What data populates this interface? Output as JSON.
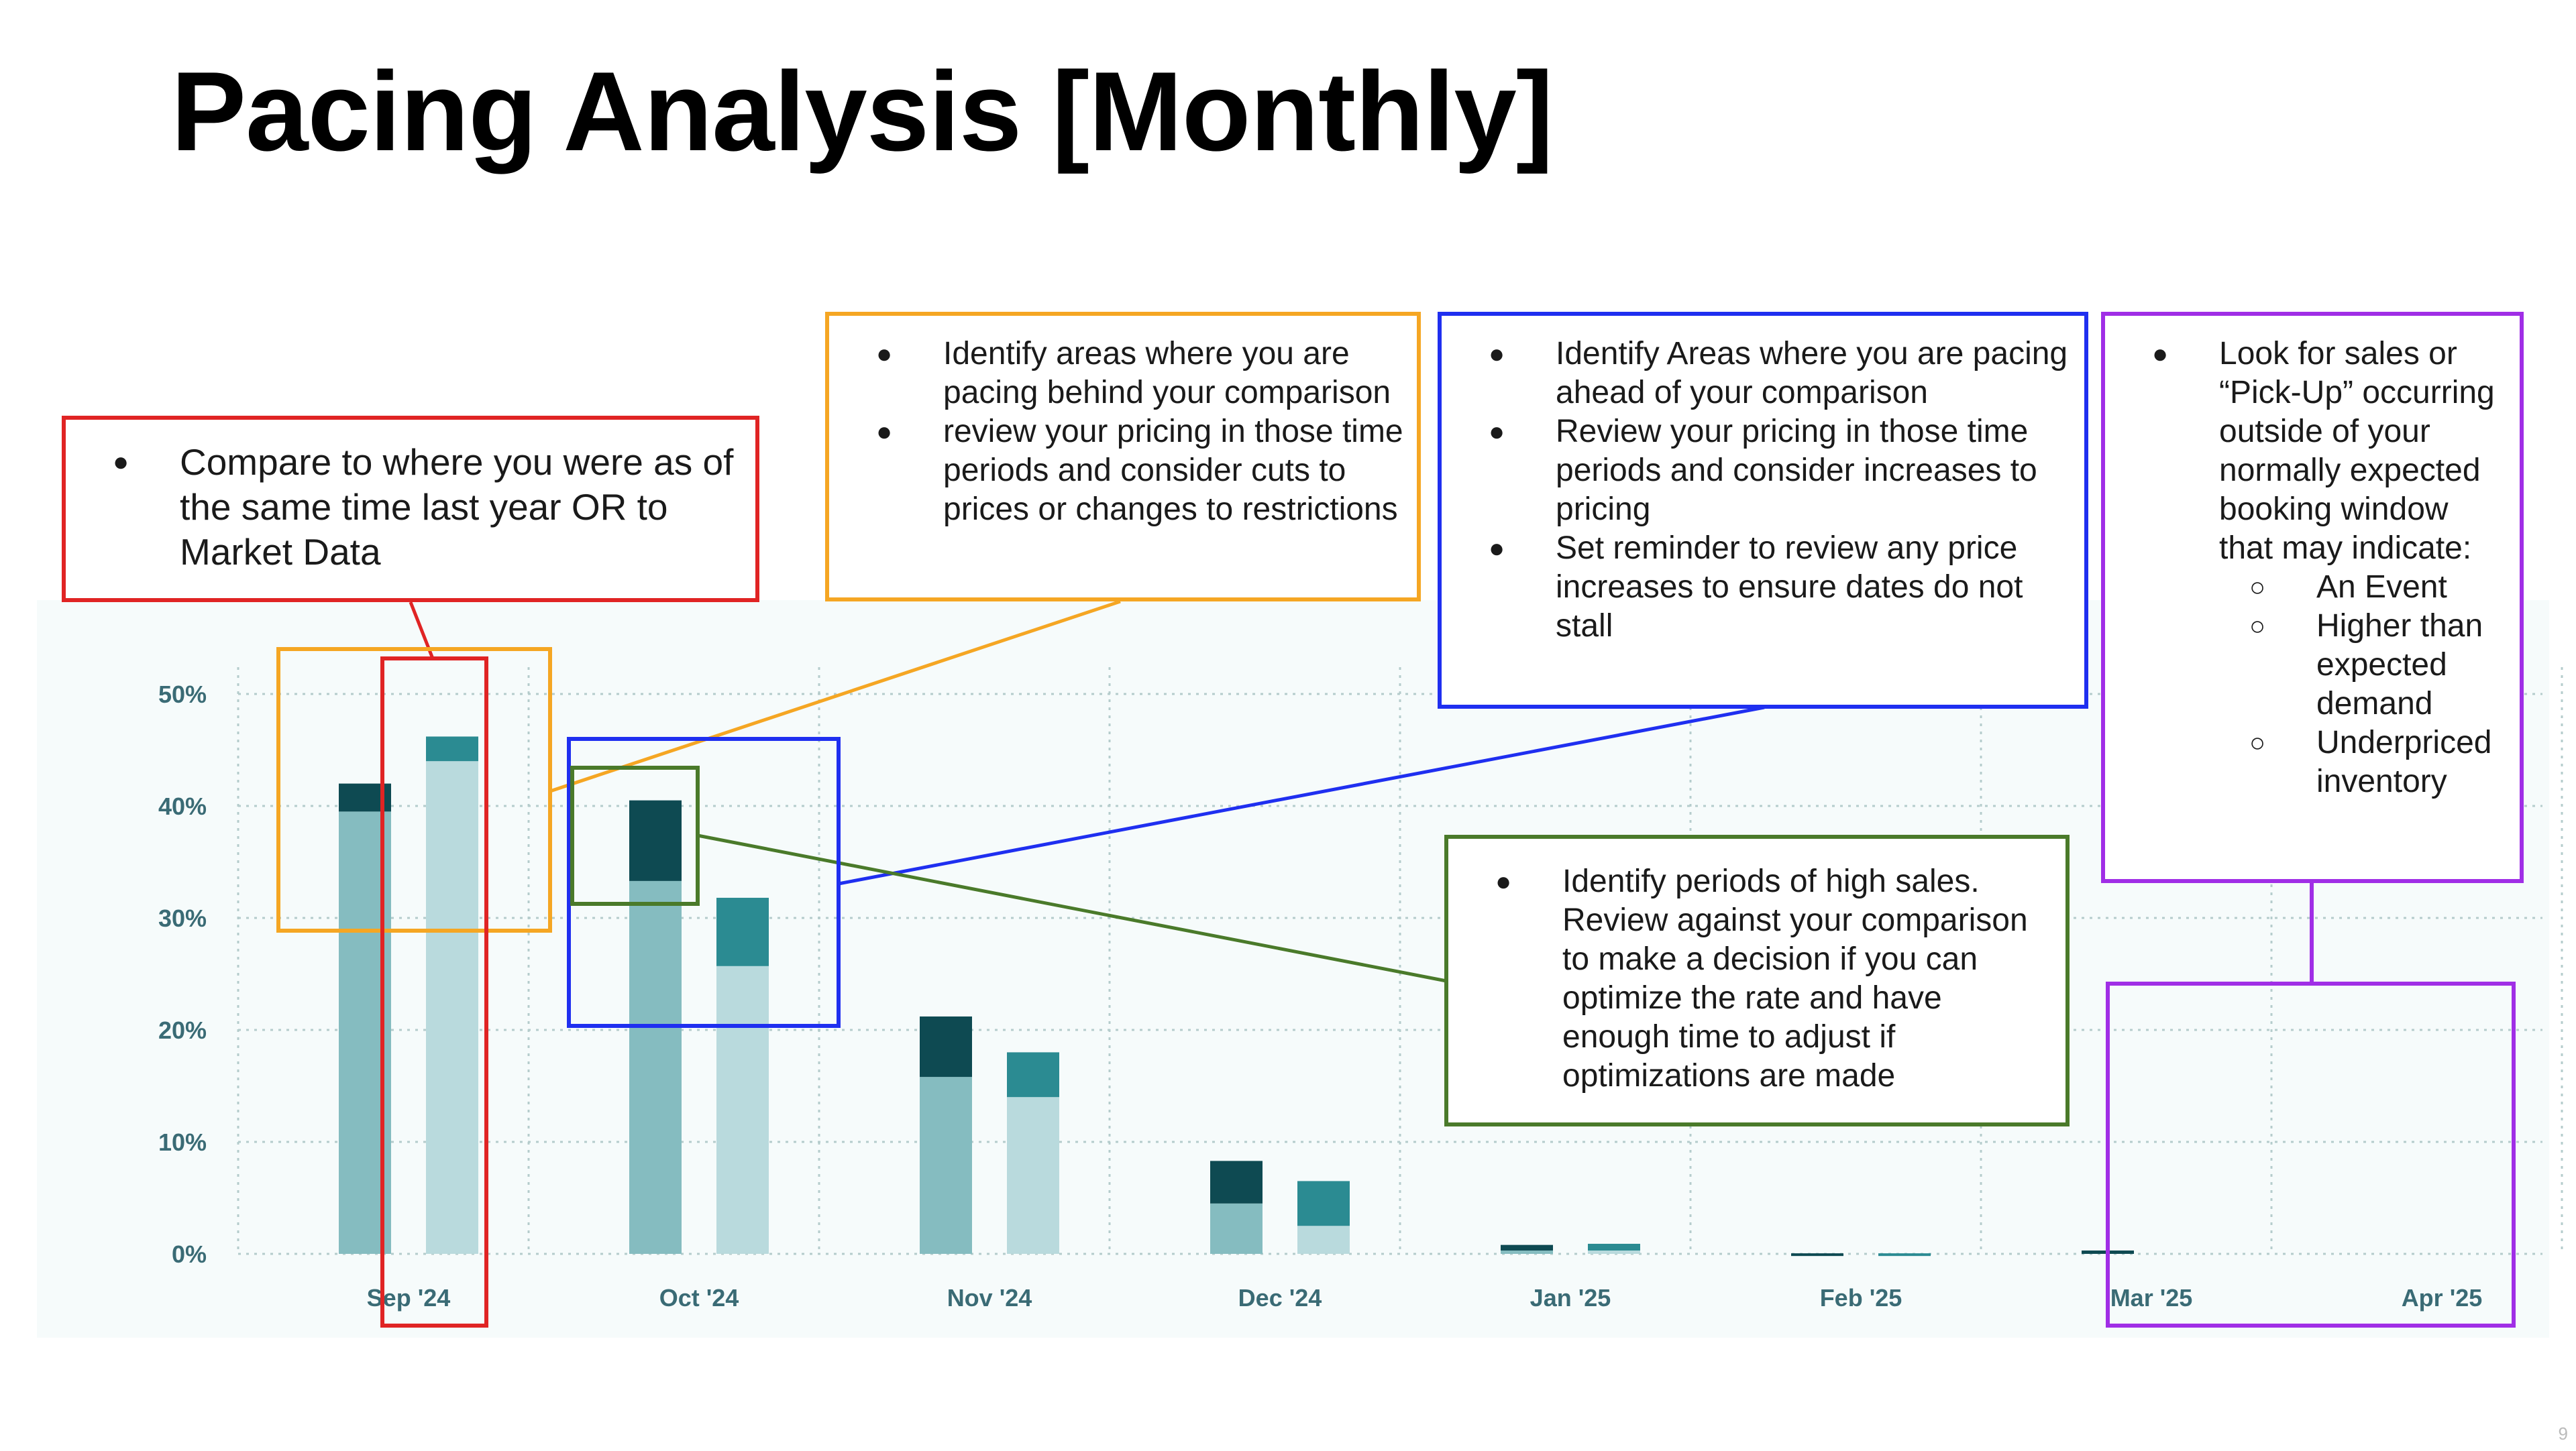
{
  "slide": {
    "title": "Pacing Analysis [Monthly]",
    "page_number": "9"
  },
  "chart_data": {
    "type": "bar",
    "stacked": true,
    "categories": [
      "Sep '24",
      "Oct '24",
      "Nov '24",
      "Dec '24",
      "Jan '25",
      "Feb '25",
      "Mar '25",
      "Apr '25"
    ],
    "y_ticks": [
      "0%",
      "10%",
      "20%",
      "30%",
      "40%",
      "50%"
    ],
    "ylim": [
      0,
      50
    ],
    "grid": true,
    "bars": [
      {
        "group": 0,
        "position": "left",
        "base": 39.5,
        "top": 42.0
      },
      {
        "group": 0,
        "position": "right",
        "base": 44.0,
        "top": 46.2
      },
      {
        "group": 1,
        "position": "left",
        "base": 33.3,
        "top": 40.5
      },
      {
        "group": 1,
        "position": "right",
        "base": 25.7,
        "top": 31.8
      },
      {
        "group": 2,
        "position": "left",
        "base": 15.8,
        "top": 21.2
      },
      {
        "group": 2,
        "position": "right",
        "base": 14.0,
        "top": 18.0
      },
      {
        "group": 3,
        "position": "left",
        "base": 4.5,
        "top": 8.3
      },
      {
        "group": 3,
        "position": "right",
        "base": 2.5,
        "top": 6.5
      },
      {
        "group": 4,
        "position": "left",
        "base": 0.3,
        "top": 0.8
      },
      {
        "group": 4,
        "position": "right",
        "base": 0.3,
        "top": 0.9
      },
      {
        "group": 5,
        "position": "left",
        "base": 0.0,
        "top": 0.05
      },
      {
        "group": 5,
        "position": "right",
        "base": 0.0,
        "top": 0.05
      },
      {
        "group": 6,
        "position": "left",
        "base": 0.0,
        "top": 0.3
      },
      {
        "group": 6,
        "position": "right",
        "base": 0.0,
        "top": 0.0
      },
      {
        "group": 7,
        "position": "left",
        "base": 0.0,
        "top": 0.0
      },
      {
        "group": 7,
        "position": "right",
        "base": 0.0,
        "top": 0.0
      }
    ],
    "colors": {
      "left_base": "#85bcc0",
      "left_top": "#0e4a52",
      "right_base": "#b9dadd",
      "right_top": "#2b8b92",
      "grid": "#b5cccc",
      "tick_text": "#3a6b75"
    }
  },
  "callouts": {
    "red": {
      "color": "#e02424",
      "bullets": [
        "Compare to where you were as of the same time last year OR to Market Data"
      ]
    },
    "orange": {
      "color": "#f5a623",
      "bullets": [
        "Identify areas where you are pacing behind your comparison",
        "review your pricing in those time periods and consider cuts to prices or changes to restrictions"
      ]
    },
    "blue": {
      "color": "#1f2ff0",
      "bullets": [
        "Identify Areas where you are pacing ahead of your comparison",
        "Review your pricing in those time periods and consider increases to pricing",
        "Set reminder to review any price increases to ensure dates do not stall"
      ]
    },
    "purple": {
      "color": "#a02ee6",
      "bullet": "Look for sales or “Pick-Up” occurring outside of your normally expected booking window that may indicate:",
      "sub_bullets": [
        "An Event",
        "Higher than expected demand",
        "Underpriced inventory"
      ]
    },
    "green": {
      "color": "#4a7a2a",
      "bullets": [
        "Identify periods of high sales. Review against your comparison to make a decision if you can optimize the rate and have enough time to adjust if optimizations are made"
      ]
    }
  }
}
